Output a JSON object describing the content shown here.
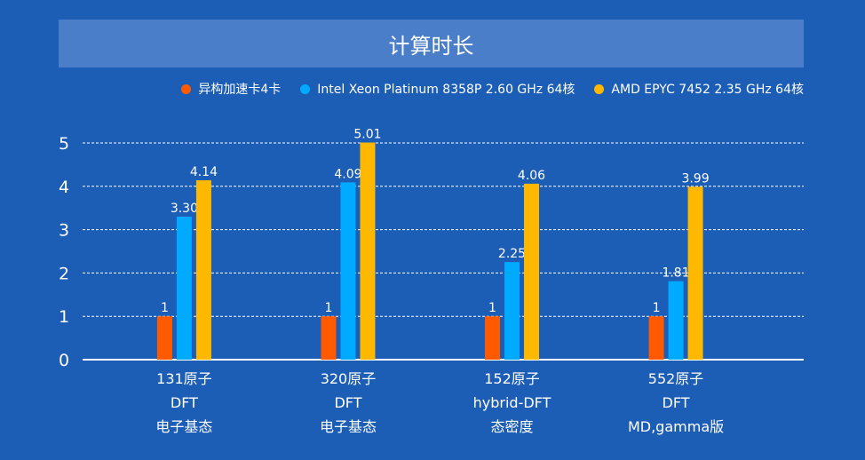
{
  "chart_data": {
    "type": "bar",
    "title": "计算时长",
    "categories": [
      [
        "131原子",
        "DFT",
        "电子基态"
      ],
      [
        "320原子",
        "DFT",
        "电子基态"
      ],
      [
        "152原子",
        "hybrid-DFT",
        "态密度"
      ],
      [
        "552原子",
        "DFT",
        "MD,gamma版"
      ]
    ],
    "series": [
      {
        "name": "异构加速卡4卡",
        "color": "#ff5a00",
        "values": [
          1,
          1,
          1,
          1
        ],
        "labels": [
          "1",
          "1",
          "1",
          "1"
        ]
      },
      {
        "name": "Intel Xeon Platinum 8358P 2.60 GHz 64核",
        "color": "#00aaff",
        "values": [
          3.3,
          4.09,
          2.25,
          1.81
        ],
        "labels": [
          "3.30",
          "4.09",
          "2.25",
          "1.81"
        ]
      },
      {
        "name": "AMD EPYC 7452 2.35 GHz 64核",
        "color": "#ffb800",
        "values": [
          4.14,
          5.01,
          4.06,
          3.99
        ],
        "labels": [
          "4.14",
          "5.01",
          "4.06",
          "3.99"
        ]
      }
    ],
    "yticks": [
      "0",
      "1",
      "2",
      "3",
      "4",
      "5"
    ],
    "ylim": [
      0,
      5
    ],
    "grid": true,
    "legend": "top-right"
  }
}
